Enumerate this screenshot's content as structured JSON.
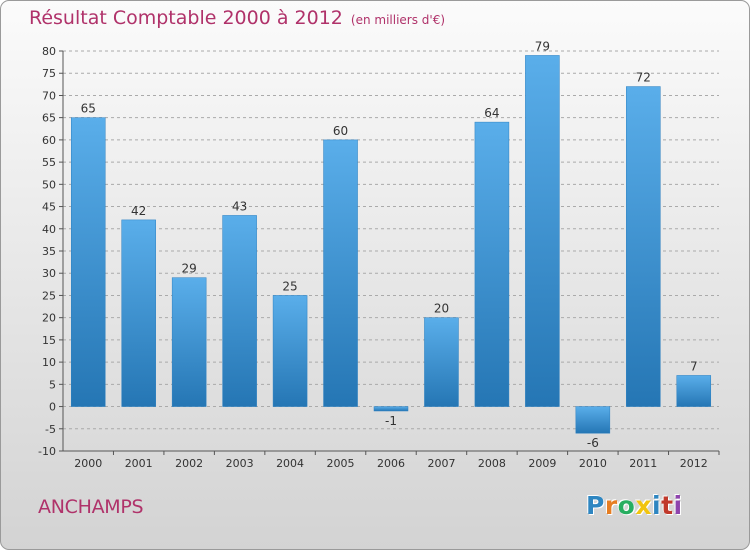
{
  "title": "Résultat Comptable 2000 à 2012",
  "subtitle": "(en milliers d'€)",
  "location": "ANCHAMPS",
  "brand": {
    "letters": [
      {
        "ch": "P",
        "color": "#2e86c1"
      },
      {
        "ch": "r",
        "color": "#e67e22"
      },
      {
        "ch": "o",
        "color": "#27ae60"
      },
      {
        "ch": "x",
        "color": "#f1c40f"
      },
      {
        "ch": "i",
        "color": "#2e86c1"
      },
      {
        "ch": "t",
        "color": "#c0392b"
      },
      {
        "ch": "i",
        "color": "#8e44ad"
      }
    ]
  },
  "colors": {
    "title": "#b0326a",
    "bar_top": "#5aaeea",
    "bar_bottom": "#2576b4",
    "grid": "#aaaaaa"
  },
  "chart_data": {
    "type": "bar",
    "categories": [
      "2000",
      "2001",
      "2002",
      "2003",
      "2004",
      "2005",
      "2006",
      "2007",
      "2008",
      "2009",
      "2010",
      "2011",
      "2012"
    ],
    "values": [
      65,
      42,
      29,
      43,
      25,
      60,
      -1,
      20,
      64,
      79,
      -6,
      72,
      7
    ],
    "ylim": [
      -10,
      80
    ],
    "ytick_step": 5,
    "grid": "horizontal dashed"
  }
}
